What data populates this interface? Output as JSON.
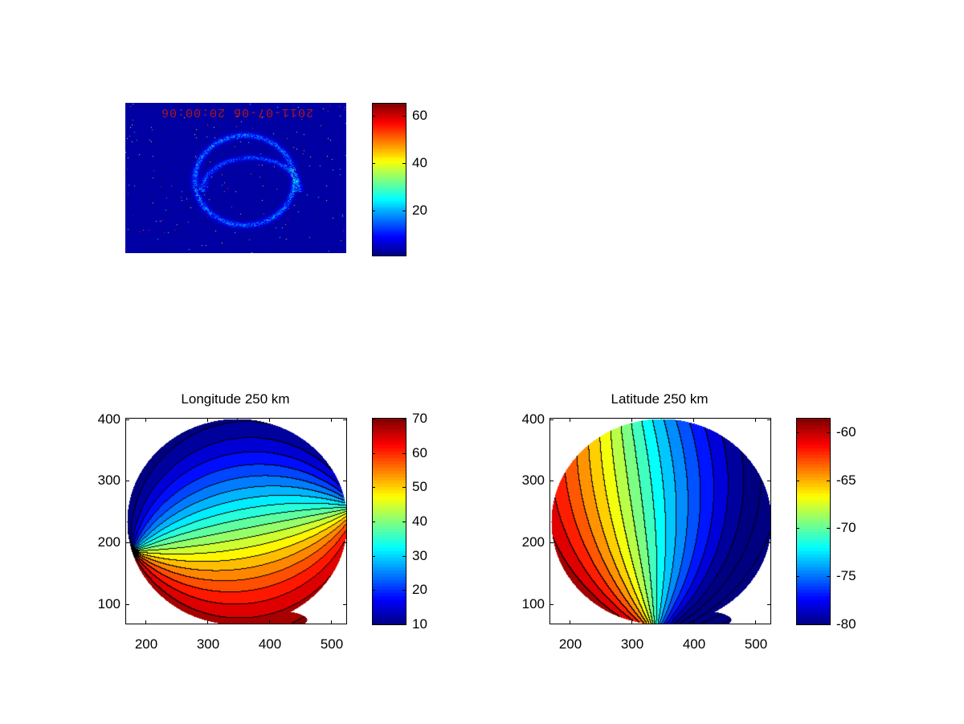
{
  "chart_data": [
    {
      "type": "heatmap",
      "title": "",
      "image_text": "2011-07-06 20:00:06",
      "colormap": "jet",
      "colorbar": {
        "range": [
          1,
          65
        ],
        "ticks": [
          20,
          40,
          60
        ],
        "tick_labels": [
          "20",
          "40",
          "60"
        ]
      },
      "axes_visible": false
    },
    {
      "type": "heatmap",
      "subtype": "filled-contour",
      "title": "Longitude 250 km",
      "xlim": [
        167,
        526
      ],
      "ylim": [
        67,
        402
      ],
      "xticks": [
        200,
        300,
        400,
        500
      ],
      "xtick_labels": [
        "200",
        "300",
        "400",
        "500"
      ],
      "yticks": [
        100,
        200,
        300,
        400
      ],
      "ytick_labels": [
        "100",
        "200",
        "300",
        "400"
      ],
      "value_range": [
        10,
        70
      ],
      "colormap": "jet",
      "colorbar": {
        "range": [
          10,
          70
        ],
        "ticks": [
          10,
          20,
          30,
          40,
          50,
          60,
          70
        ],
        "tick_labels": [
          "10",
          "20",
          "30",
          "40",
          "50",
          "60",
          "70"
        ]
      }
    },
    {
      "type": "heatmap",
      "subtype": "filled-contour",
      "title": "Latitude 250 km",
      "xlim": [
        167,
        526
      ],
      "ylim": [
        67,
        402
      ],
      "xticks": [
        200,
        300,
        400,
        500
      ],
      "xtick_labels": [
        "200",
        "300",
        "400",
        "500"
      ],
      "yticks": [
        100,
        200,
        300,
        400
      ],
      "ytick_labels": [
        "100",
        "200",
        "300",
        "400"
      ],
      "value_range": [
        -80,
        -58.6
      ],
      "colormap": "jet",
      "colorbar": {
        "range": [
          -80,
          -58.6
        ],
        "ticks": [
          -80,
          -75,
          -70,
          -65,
          -60
        ],
        "tick_labels": [
          "-80",
          "-75",
          "-70",
          "-65",
          "-60"
        ]
      }
    }
  ]
}
